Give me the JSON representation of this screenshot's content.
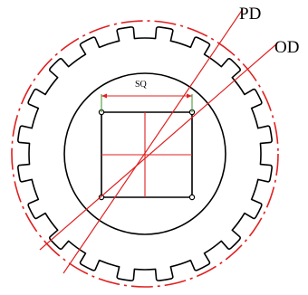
{
  "labels": {
    "pd": "PD",
    "od": "OD",
    "sq": "SQ"
  },
  "diagram": {
    "sprocket_teeth": 20
  },
  "colors": {
    "outline": "#000000",
    "reference": "#e02020",
    "dimension_tick": "#4a9a3a"
  }
}
